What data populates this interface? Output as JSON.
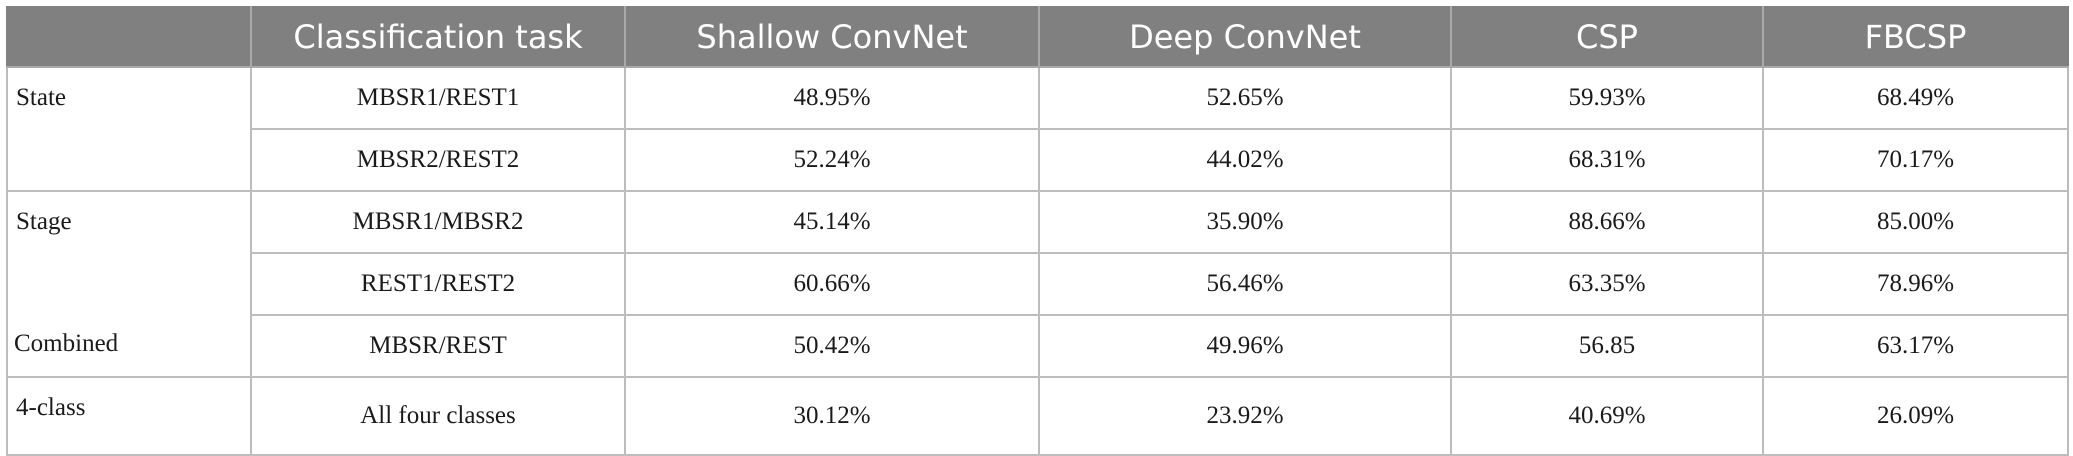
{
  "headers": [
    "",
    "Classification task",
    "Shallow ConvNet",
    "Deep ConvNet",
    "CSP",
    "FBCSP"
  ],
  "groups": {
    "state": "State",
    "stage": "Stage",
    "combined": "Combined",
    "fourclass": "4-class"
  },
  "rows": [
    {
      "task": "MBSR1/REST1",
      "shallow": "48.95%",
      "deep": "52.65%",
      "csp": "59.93%",
      "fbcsp": "68.49%"
    },
    {
      "task": "MBSR2/REST2",
      "shallow": "52.24%",
      "deep": "44.02%",
      "csp": "68.31%",
      "fbcsp": "70.17%"
    },
    {
      "task": "MBSR1/MBSR2",
      "shallow": "45.14%",
      "deep": "35.90%",
      "csp": "88.66%",
      "fbcsp": "85.00%"
    },
    {
      "task": "REST1/REST2",
      "shallow": "60.66%",
      "deep": "56.46%",
      "csp": "63.35%",
      "fbcsp": "78.96%"
    },
    {
      "task": "MBSR/REST",
      "shallow": "50.42%",
      "deep": "49.96%",
      "csp": "56.85",
      "fbcsp": "63.17%"
    },
    {
      "task": "All four classes",
      "shallow": "30.12%",
      "deep": "23.92%",
      "csp": "40.69%",
      "fbcsp": "26.09%"
    }
  ]
}
